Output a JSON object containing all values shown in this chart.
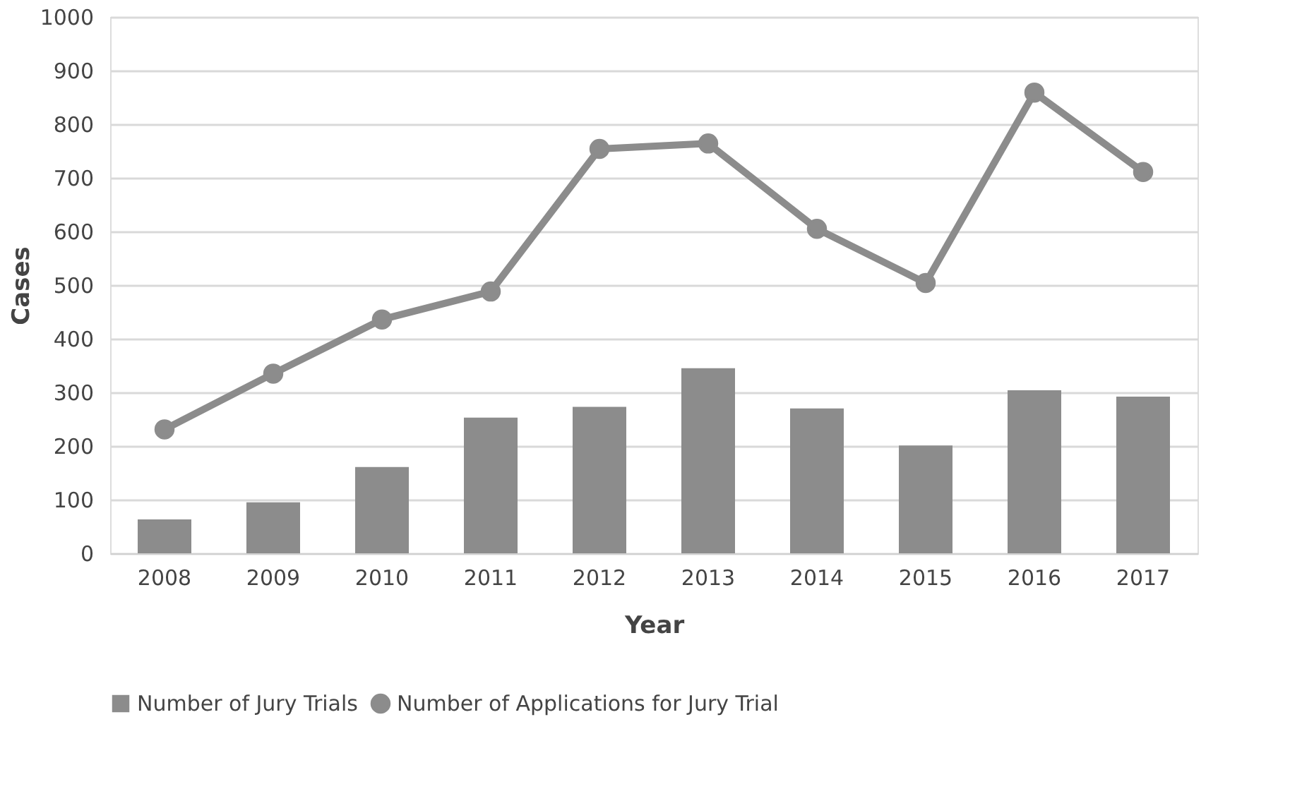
{
  "chart_data": {
    "type": "bar",
    "xlabel": "Year",
    "ylabel": "Cases",
    "categories": [
      "2008",
      "2009",
      "2010",
      "2011",
      "2012",
      "2013",
      "2014",
      "2015",
      "2016",
      "2017"
    ],
    "series": [
      {
        "name": "Number of Jury Trials",
        "color": "#8c8c8c",
        "values": [
          63,
          95,
          161,
          253,
          273,
          345,
          270,
          201,
          304,
          292
        ]
      },
      {
        "name": "Number of Applications for Jury Trial",
        "type": "line",
        "color": "#8c8c8c",
        "marker": "circle",
        "values": [
          231,
          335,
          436,
          488,
          754,
          764,
          605,
          504,
          859,
          711
        ]
      }
    ],
    "ylim": [
      0,
      1000
    ],
    "yticks": [
      0,
      100,
      200,
      300,
      400,
      500,
      600,
      700,
      800,
      900,
      {
        "value": 1000,
        "label": "1000"
      }
    ],
    "grid": "y",
    "legend": "bottom"
  }
}
